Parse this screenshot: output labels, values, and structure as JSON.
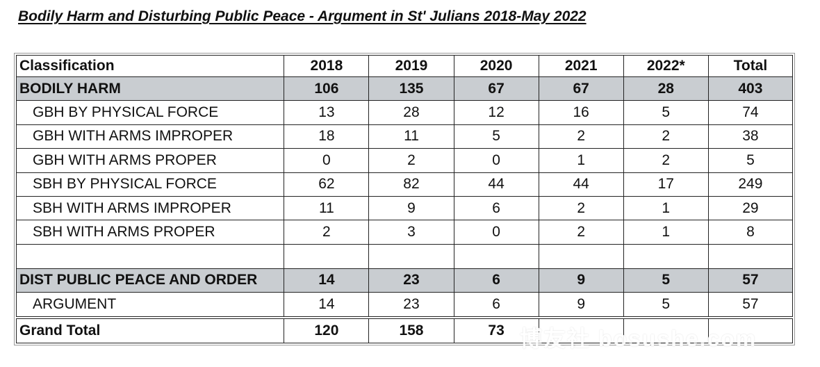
{
  "title": "Bodily Harm and Disturbing Public Peace - Argument in St' Julians 2018-May 2022",
  "table": {
    "headers": [
      "Classification",
      "2018",
      "2019",
      "2020",
      "2021",
      "2022*",
      "Total"
    ],
    "rows": [
      {
        "type": "group",
        "label": "BODILY HARM",
        "values": [
          "106",
          "135",
          "67",
          "67",
          "28",
          "403"
        ]
      },
      {
        "type": "sub",
        "label": "GBH BY PHYSICAL FORCE",
        "values": [
          "13",
          "28",
          "12",
          "16",
          "5",
          "74"
        ]
      },
      {
        "type": "sub",
        "label": "GBH WITH ARMS IMPROPER",
        "values": [
          "18",
          "11",
          "5",
          "2",
          "2",
          "38"
        ]
      },
      {
        "type": "sub",
        "label": "GBH WITH ARMS PROPER",
        "values": [
          "0",
          "2",
          "0",
          "1",
          "2",
          "5"
        ]
      },
      {
        "type": "sub",
        "label": "SBH BY PHYSICAL FORCE",
        "values": [
          "62",
          "82",
          "44",
          "44",
          "17",
          "249"
        ]
      },
      {
        "type": "sub",
        "label": "SBH WITH ARMS IMPROPER",
        "values": [
          "11",
          "9",
          "6",
          "2",
          "1",
          "29"
        ]
      },
      {
        "type": "sub",
        "label": "SBH WITH ARMS PROPER",
        "values": [
          "2",
          "3",
          "0",
          "2",
          "1",
          "8"
        ]
      },
      {
        "type": "group",
        "label": "DIST PUBLIC PEACE AND ORDER",
        "values": [
          "14",
          "23",
          "6",
          "9",
          "5",
          "57"
        ]
      },
      {
        "type": "sub",
        "label": "ARGUMENT",
        "values": [
          "14",
          "23",
          "6",
          "9",
          "5",
          "57"
        ]
      },
      {
        "type": "grand",
        "label": "Grand Total",
        "values": [
          "120",
          "158",
          "73",
          "",
          "",
          ""
        ]
      }
    ]
  },
  "watermark": "博友社 bosushe.com",
  "colors": {
    "group_row_bg": "#c9cdd1",
    "border": "#222222"
  }
}
